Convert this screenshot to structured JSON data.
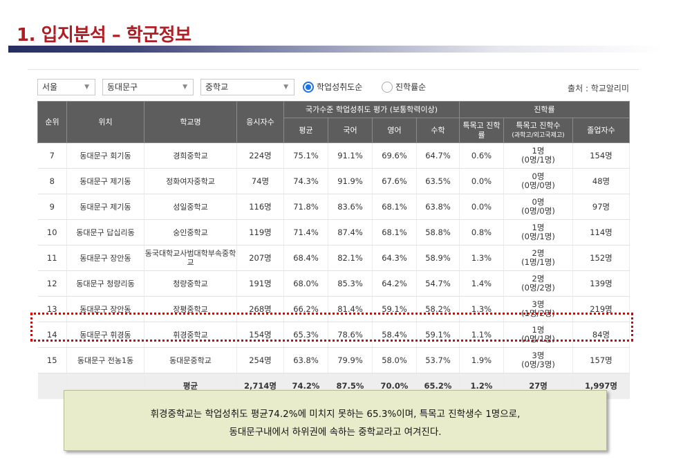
{
  "title": "1. 입지분석 – 학군정보",
  "filters": {
    "region": "서울",
    "district": "동대문구",
    "school_type": "중학교",
    "sort_options": [
      {
        "label": "학업성취도순",
        "selected": true
      },
      {
        "label": "진학률순",
        "selected": false
      }
    ],
    "source": "출처 : 학교알리미"
  },
  "table": {
    "headers": {
      "rank": "순위",
      "location": "위치",
      "school": "학교명",
      "examinees": "응시자수",
      "achievement_group": "국가수준 학업성취도 평가 (보통학력이상)",
      "average": "평균",
      "korean": "국어",
      "english": "영어",
      "math": "수학",
      "advancement_group": "진학률",
      "special_rate": "특목고 진학률",
      "special_count": "특목고 진학수",
      "special_count_sub": "(과학고/외고국제고)",
      "graduates": "졸업자수"
    },
    "rows": [
      {
        "rank": "7",
        "location": "동대문구 회기동",
        "school": "경희중학교",
        "examinees": "224명",
        "average": "75.1%",
        "korean": "91.1%",
        "english": "69.6%",
        "math": "64.7%",
        "special_rate": "0.6%",
        "special_count": "1명",
        "special_detail": "(0명/1명)",
        "graduates": "154명"
      },
      {
        "rank": "8",
        "location": "동대문구 제기동",
        "school": "정화여자중학교",
        "examinees": "74명",
        "average": "74.3%",
        "korean": "91.9%",
        "english": "67.6%",
        "math": "63.5%",
        "special_rate": "0.0%",
        "special_count": "0명",
        "special_detail": "(0명/0명)",
        "graduates": "48명"
      },
      {
        "rank": "9",
        "location": "동대문구 제기동",
        "school": "성일중학교",
        "examinees": "116명",
        "average": "71.8%",
        "korean": "83.6%",
        "english": "68.1%",
        "math": "63.8%",
        "special_rate": "0.0%",
        "special_count": "0명",
        "special_detail": "(0명/0명)",
        "graduates": "97명"
      },
      {
        "rank": "10",
        "location": "동대문구 답십리동",
        "school": "숭인중학교",
        "examinees": "119명",
        "average": "71.4%",
        "korean": "87.4%",
        "english": "68.1%",
        "math": "58.8%",
        "special_rate": "0.8%",
        "special_count": "1명",
        "special_detail": "(0명/1명)",
        "graduates": "114명"
      },
      {
        "rank": "11",
        "location": "동대문구 장안동",
        "school": "동국대학교사범대학부속중학교",
        "examinees": "207명",
        "average": "68.4%",
        "korean": "82.1%",
        "english": "64.3%",
        "math": "58.9%",
        "special_rate": "1.3%",
        "special_count": "2명",
        "special_detail": "(1명/1명)",
        "graduates": "152명"
      },
      {
        "rank": "12",
        "location": "동대문구 청량리동",
        "school": "청량중학교",
        "examinees": "191명",
        "average": "68.0%",
        "korean": "85.3%",
        "english": "64.2%",
        "math": "54.7%",
        "special_rate": "1.4%",
        "special_count": "2명",
        "special_detail": "(0명/2명)",
        "graduates": "139명"
      },
      {
        "rank": "13",
        "location": "동대문구 장안동",
        "school": "장평중학교",
        "examinees": "268명",
        "average": "66.2%",
        "korean": "81.4%",
        "english": "59.1%",
        "math": "58.2%",
        "special_rate": "1.3%",
        "special_count": "3명",
        "special_detail": "(1명/2명)",
        "graduates": "219명"
      },
      {
        "rank": "14",
        "location": "동대문구 휘경동",
        "school": "휘경중학교",
        "examinees": "154명",
        "average": "65.3%",
        "korean": "78.6%",
        "english": "58.4%",
        "math": "59.1%",
        "special_rate": "1.1%",
        "special_count": "1명",
        "special_detail": "(0명/1명)",
        "graduates": "84명"
      },
      {
        "rank": "15",
        "location": "동대문구 전농1동",
        "school": "동대문중학교",
        "examinees": "254명",
        "average": "63.8%",
        "korean": "79.9%",
        "english": "58.0%",
        "math": "53.7%",
        "special_rate": "1.9%",
        "special_count": "3명",
        "special_detail": "(0명/3명)",
        "graduates": "157명"
      }
    ],
    "summary": {
      "label": "평균",
      "examinees": "2,714명",
      "average": "74.2%",
      "korean": "87.5%",
      "english": "70.0%",
      "math": "65.2%",
      "special_rate": "1.2%",
      "special_count": "27명",
      "graduates": "1,997명"
    }
  },
  "highlight_row": "14",
  "note": {
    "line1": "휘경중학교는 학업성취도 평균74.2%에 미치지 못하는 65.3%이며, 특목고 진학생수 1명으로,",
    "line2": "동대문구내에서 하위권에 속하는 중학교라고 여겨진다."
  },
  "colors": {
    "title": "#b01e23",
    "header_bg": "#5d5d5d",
    "highlight": "#e00000",
    "note_bg": "#e9eccb"
  }
}
